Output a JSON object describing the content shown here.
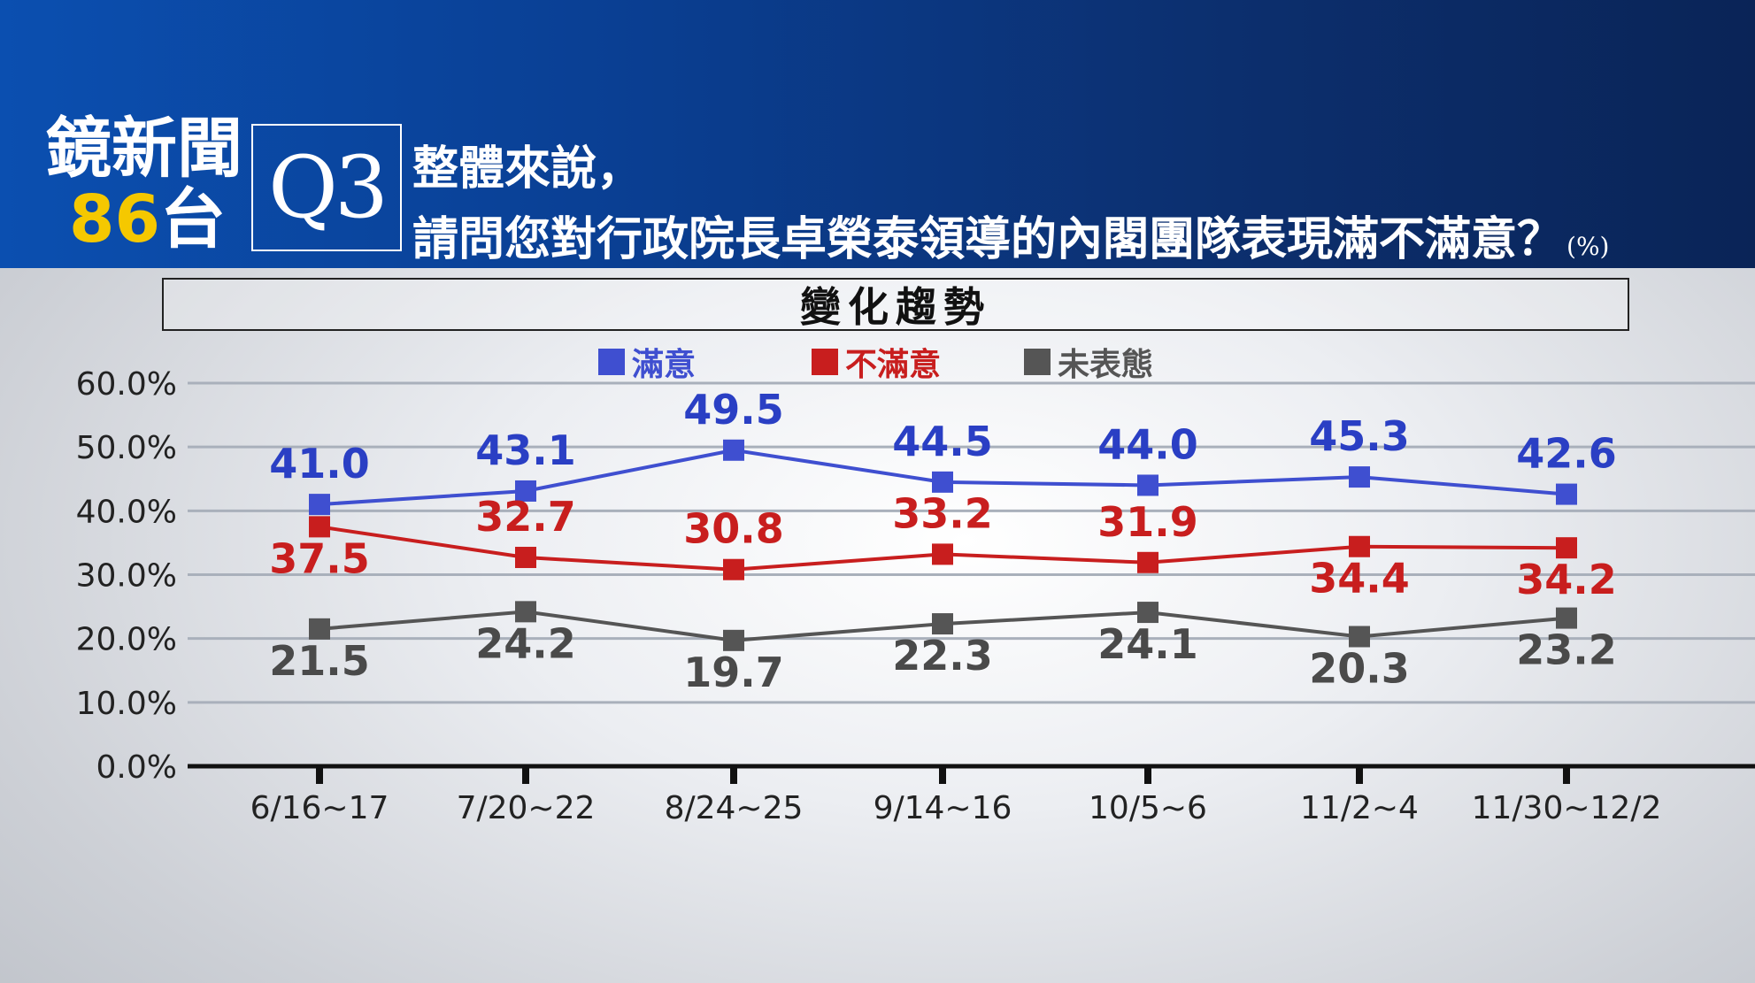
{
  "header": {
    "logo_line1": "鏡新聞",
    "logo_num": "86",
    "logo_tai": "台",
    "question_no": "Q3",
    "question_line1": "整體來說，",
    "question_line2": "請問您對行政院長卓榮泰領導的內閣團隊表現滿不滿意？",
    "unit": "(%)"
  },
  "trend_label": "變化趨勢",
  "legend": [
    {
      "name": "滿意",
      "color": "#3f4fd0"
    },
    {
      "name": "不滿意",
      "color": "#c81e1e"
    },
    {
      "name": "未表態",
      "color": "#555555"
    }
  ],
  "chart_data": {
    "type": "line",
    "categories": [
      "6/16~17",
      "7/20~22",
      "8/24~25",
      "9/14~16",
      "10/5~6",
      "11/2~4",
      "11/30~12/2"
    ],
    "y_ticks": [
      "0.0%",
      "10.0%",
      "20.0%",
      "30.0%",
      "40.0%",
      "50.0%",
      "60.0%"
    ],
    "ylim": [
      0,
      60
    ],
    "grid": true,
    "legend_position": "top-center",
    "series": [
      {
        "name": "滿意",
        "color": "#3f4fd0",
        "label_color": "#2a3fc4",
        "values": [
          41.0,
          43.1,
          49.5,
          44.5,
          44.0,
          45.3,
          42.6
        ],
        "labels": [
          "41.0",
          "43.1",
          "49.5",
          "44.5",
          "44.0",
          "45.3",
          "42.6"
        ]
      },
      {
        "name": "不滿意",
        "color": "#c81e1e",
        "label_color": "#c81e1e",
        "values": [
          37.5,
          32.7,
          30.8,
          33.2,
          31.9,
          34.4,
          34.2
        ],
        "labels": [
          "37.5",
          "32.7",
          "30.8",
          "33.2",
          "31.9",
          "34.4",
          "34.2"
        ]
      },
      {
        "name": "未表態",
        "color": "#555555",
        "label_color": "#4a4a4a",
        "values": [
          21.5,
          24.2,
          19.7,
          22.3,
          24.1,
          20.3,
          23.2
        ],
        "labels": [
          "21.5",
          "24.2",
          "19.7",
          "22.3",
          "24.1",
          "20.3",
          "23.2"
        ]
      }
    ]
  }
}
